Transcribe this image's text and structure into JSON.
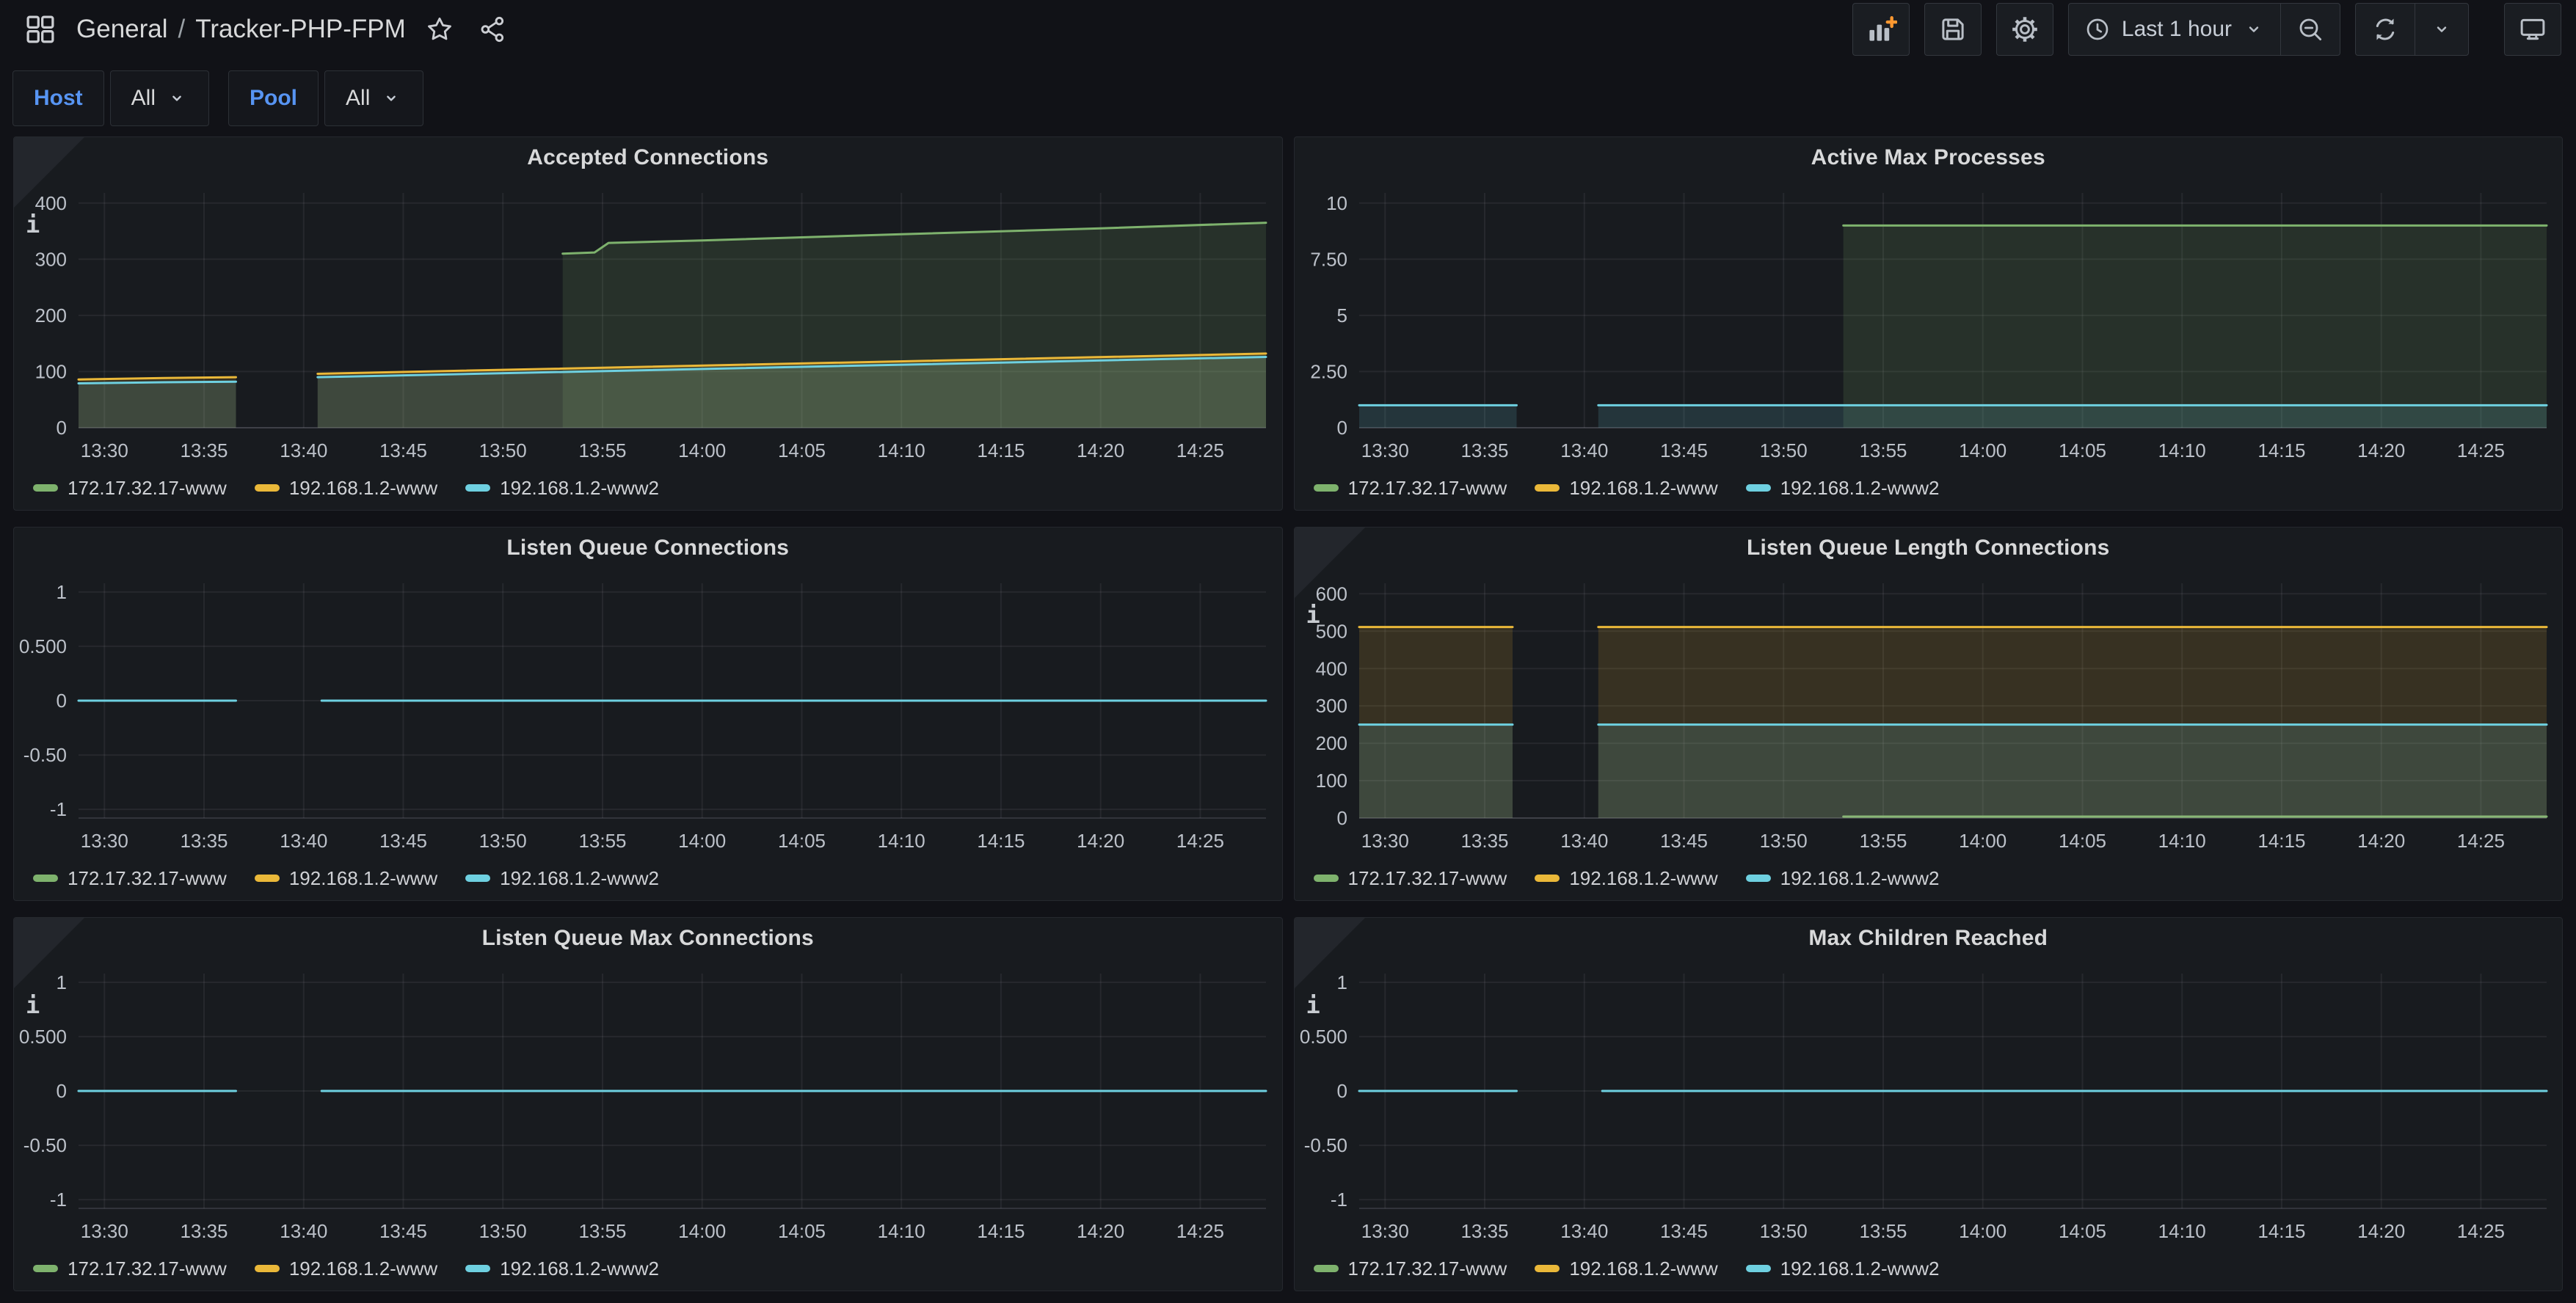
{
  "navbar": {
    "breadcrumb": {
      "folder": "General",
      "separator": "/",
      "title": "Tracker-PHP-FPM"
    },
    "time_picker_label": "Last 1 hour"
  },
  "filters": {
    "host": {
      "label": "Host",
      "value": "All"
    },
    "pool": {
      "label": "Pool",
      "value": "All"
    }
  },
  "colors": {
    "green": "#7EB26D",
    "yellow": "#EAB839",
    "cyan": "#6ED0E0",
    "accent_plus": "#FF9830",
    "label_blue": "#5794F2",
    "panel_bg": "#181b1f",
    "page_bg": "#111217"
  },
  "chart_data": [
    {
      "type": "line",
      "title": "Accepted Connections",
      "info_icon": true,
      "xlabel": "",
      "ylabel": "",
      "x_range": [
        28.7,
        88.3
      ],
      "x_tick_values": [
        30,
        35,
        40,
        45,
        50,
        55,
        60,
        65,
        70,
        75,
        80,
        85
      ],
      "x_tick_labels": [
        "13:30",
        "13:35",
        "13:40",
        "13:45",
        "13:50",
        "13:55",
        "14:00",
        "14:05",
        "14:10",
        "14:15",
        "14:20",
        "14:25"
      ],
      "y_range": [
        0,
        418
      ],
      "y_tick_values": [
        0,
        100,
        200,
        300,
        400
      ],
      "y_tick_labels": [
        "0",
        "100",
        "200",
        "300",
        "400"
      ],
      "legend_position": "bottom-left",
      "series": [
        {
          "name": "172.17.32.17-www",
          "color": "#7EB26D",
          "segments": [
            [
              [
                53,
                310
              ],
              [
                54.6,
                312
              ],
              [
                55.3,
                329
              ],
              [
                60,
                333.5
              ],
              [
                70,
                344.5
              ],
              [
                80,
                355
              ],
              [
                88.3,
                365
              ]
            ]
          ]
        },
        {
          "name": "192.168.1.2-www",
          "color": "#EAB839",
          "segments": [
            [
              [
                28.7,
                86
              ],
              [
                33,
                88.5
              ],
              [
                36.6,
                90
              ]
            ],
            [
              [
                40.7,
                96
              ],
              [
                88.3,
                132
              ]
            ]
          ]
        },
        {
          "name": "192.168.1.2-www2",
          "color": "#6ED0E0",
          "segments": [
            [
              [
                28.7,
                79
              ],
              [
                33,
                81
              ],
              [
                36.6,
                82
              ]
            ],
            [
              [
                40.7,
                90
              ],
              [
                88.3,
                126
              ]
            ]
          ]
        }
      ]
    },
    {
      "type": "line",
      "title": "Active Max Processes",
      "info_icon": false,
      "xlabel": "",
      "ylabel": "",
      "x_range": [
        28.7,
        88.3
      ],
      "x_tick_values": [
        30,
        35,
        40,
        45,
        50,
        55,
        60,
        65,
        70,
        75,
        80,
        85
      ],
      "x_tick_labels": [
        "13:30",
        "13:35",
        "13:40",
        "13:45",
        "13:50",
        "13:55",
        "14:00",
        "14:05",
        "14:10",
        "14:15",
        "14:20",
        "14:25"
      ],
      "y_range": [
        0,
        10.45
      ],
      "y_tick_values": [
        0,
        2.5,
        5,
        7.5,
        10
      ],
      "y_tick_labels": [
        "0",
        "2.50",
        "5",
        "7.50",
        "10"
      ],
      "legend_position": "bottom-left",
      "series": [
        {
          "name": "172.17.32.17-www",
          "color": "#7EB26D",
          "segments": [
            [
              [
                53,
                9
              ],
              [
                88.3,
                9
              ]
            ]
          ]
        },
        {
          "name": "192.168.1.2-www",
          "color": "#EAB839",
          "segments": []
        },
        {
          "name": "192.168.1.2-www2",
          "color": "#6ED0E0",
          "segments": [
            [
              [
                28.7,
                1
              ],
              [
                36.6,
                1
              ]
            ],
            [
              [
                40.7,
                1
              ],
              [
                88.3,
                1
              ]
            ]
          ]
        }
      ]
    },
    {
      "type": "line",
      "title": "Listen Queue Connections",
      "info_icon": false,
      "xlabel": "",
      "ylabel": "",
      "x_range": [
        28.7,
        88.3
      ],
      "x_tick_values": [
        30,
        35,
        40,
        45,
        50,
        55,
        60,
        65,
        70,
        75,
        80,
        85
      ],
      "x_tick_labels": [
        "13:30",
        "13:35",
        "13:40",
        "13:45",
        "13:50",
        "13:55",
        "14:00",
        "14:05",
        "14:10",
        "14:15",
        "14:20",
        "14:25"
      ],
      "y_range": [
        -1.08,
        1.08
      ],
      "y_tick_values": [
        -1,
        -0.5,
        0,
        0.5,
        1
      ],
      "y_tick_labels": [
        "-1",
        "-0.50",
        "0",
        "0.500",
        "1"
      ],
      "legend_position": "bottom-left",
      "series": [
        {
          "name": "172.17.32.17-www",
          "color": "#7EB26D",
          "segments": []
        },
        {
          "name": "192.168.1.2-www",
          "color": "#EAB839",
          "segments": []
        },
        {
          "name": "192.168.1.2-www2",
          "color": "#6ED0E0",
          "segments": [
            [
              [
                28.7,
                0
              ],
              [
                36.6,
                0
              ]
            ],
            [
              [
                40.9,
                0
              ],
              [
                88.3,
                0
              ]
            ]
          ]
        }
      ]
    },
    {
      "type": "line",
      "title": "Listen Queue Length Connections",
      "info_icon": true,
      "xlabel": "",
      "ylabel": "",
      "x_range": [
        28.7,
        88.3
      ],
      "x_tick_values": [
        30,
        35,
        40,
        45,
        50,
        55,
        60,
        65,
        70,
        75,
        80,
        85
      ],
      "x_tick_labels": [
        "13:30",
        "13:35",
        "13:40",
        "13:45",
        "13:50",
        "13:55",
        "14:00",
        "14:05",
        "14:10",
        "14:15",
        "14:20",
        "14:25"
      ],
      "y_range": [
        0,
        628
      ],
      "y_tick_values": [
        0,
        100,
        200,
        300,
        400,
        500,
        600
      ],
      "y_tick_labels": [
        "0",
        "100",
        "200",
        "300",
        "400",
        "500",
        "600"
      ],
      "legend_position": "bottom-left",
      "series": [
        {
          "name": "172.17.32.17-www",
          "color": "#7EB26D",
          "segments": [
            [
              [
                53,
                4
              ],
              [
                88.3,
                4
              ]
            ]
          ]
        },
        {
          "name": "192.168.1.2-www",
          "color": "#EAB839",
          "segments": [
            [
              [
                28.7,
                511
              ],
              [
                36.4,
                511
              ]
            ],
            [
              [
                40.7,
                511
              ],
              [
                88.3,
                511
              ]
            ]
          ]
        },
        {
          "name": "192.168.1.2-www2",
          "color": "#6ED0E0",
          "segments": [
            [
              [
                28.7,
                250
              ],
              [
                36.4,
                250
              ]
            ],
            [
              [
                40.7,
                250
              ],
              [
                88.3,
                250
              ]
            ]
          ]
        }
      ]
    },
    {
      "type": "line",
      "title": "Listen Queue Max Connections",
      "info_icon": true,
      "xlabel": "",
      "ylabel": "",
      "x_range": [
        28.7,
        88.3
      ],
      "x_tick_values": [
        30,
        35,
        40,
        45,
        50,
        55,
        60,
        65,
        70,
        75,
        80,
        85
      ],
      "x_tick_labels": [
        "13:30",
        "13:35",
        "13:40",
        "13:45",
        "13:50",
        "13:55",
        "14:00",
        "14:05",
        "14:10",
        "14:15",
        "14:20",
        "14:25"
      ],
      "y_range": [
        -1.08,
        1.08
      ],
      "y_tick_values": [
        -1,
        -0.5,
        0,
        0.5,
        1
      ],
      "y_tick_labels": [
        "-1",
        "-0.50",
        "0",
        "0.500",
        "1"
      ],
      "legend_position": "bottom-left",
      "series": [
        {
          "name": "172.17.32.17-www",
          "color": "#7EB26D",
          "segments": []
        },
        {
          "name": "192.168.1.2-www",
          "color": "#EAB839",
          "segments": []
        },
        {
          "name": "192.168.1.2-www2",
          "color": "#6ED0E0",
          "segments": [
            [
              [
                28.7,
                0
              ],
              [
                36.6,
                0
              ]
            ],
            [
              [
                40.9,
                0
              ],
              [
                88.3,
                0
              ]
            ]
          ]
        }
      ]
    },
    {
      "type": "line",
      "title": "Max Children Reached",
      "info_icon": true,
      "xlabel": "",
      "ylabel": "",
      "x_range": [
        28.7,
        88.3
      ],
      "x_tick_values": [
        30,
        35,
        40,
        45,
        50,
        55,
        60,
        65,
        70,
        75,
        80,
        85
      ],
      "x_tick_labels": [
        "13:30",
        "13:35",
        "13:40",
        "13:45",
        "13:50",
        "13:55",
        "14:00",
        "14:05",
        "14:10",
        "14:15",
        "14:20",
        "14:25"
      ],
      "y_range": [
        -1.08,
        1.08
      ],
      "y_tick_values": [
        -1,
        -0.5,
        0,
        0.5,
        1
      ],
      "y_tick_labels": [
        "-1",
        "-0.50",
        "0",
        "0.500",
        "1"
      ],
      "legend_position": "bottom-left",
      "series": [
        {
          "name": "172.17.32.17-www",
          "color": "#7EB26D",
          "segments": []
        },
        {
          "name": "192.168.1.2-www",
          "color": "#EAB839",
          "segments": []
        },
        {
          "name": "192.168.1.2-www2",
          "color": "#6ED0E0",
          "segments": [
            [
              [
                28.7,
                0
              ],
              [
                36.6,
                0
              ]
            ],
            [
              [
                40.9,
                0
              ],
              [
                88.3,
                0
              ]
            ]
          ]
        }
      ]
    }
  ]
}
